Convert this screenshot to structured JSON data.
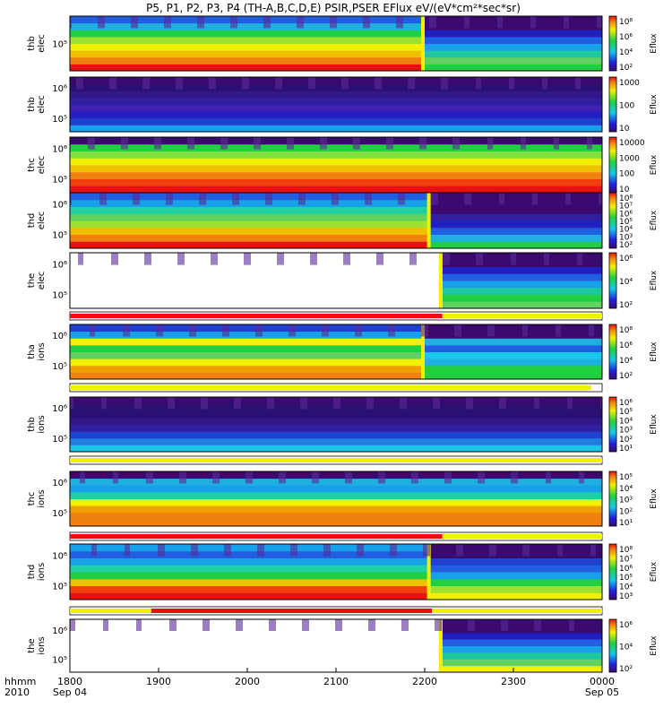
{
  "chart_data": {
    "type": "heatmap",
    "title": "P5, P1, P2, P3, P4 (TH-A,B,C,D,E) PSIR,PSER EFlux eV/(eV*cm²*sec*sr)",
    "x_axis": {
      "prefix_label": "hhmm",
      "prefix_sublabel": "2010",
      "range_hhmm": [
        "1800",
        "0000"
      ],
      "ticks": [
        {
          "label": "1800",
          "sub": "Sep 04"
        },
        {
          "label": "1900",
          "sub": ""
        },
        {
          "label": "2000",
          "sub": ""
        },
        {
          "label": "2100",
          "sub": ""
        },
        {
          "label": "2200",
          "sub": ""
        },
        {
          "label": "2300",
          "sub": ""
        },
        {
          "label": "0000",
          "sub": "Sep 05"
        }
      ]
    },
    "colorbar_label": "Eflux",
    "panels": [
      {
        "label1": "thb",
        "label2": "elec",
        "yticks": [
          "10⁵"
        ],
        "cbar": [
          "10⁸",
          "10⁶",
          "10⁴",
          "10²"
        ],
        "onset_hhmm": "2200"
      },
      {
        "label1": "thb",
        "label2": "elec",
        "yticks": [
          "10⁶",
          "10⁵"
        ],
        "cbar": [
          "1000",
          "100",
          "10"
        ]
      },
      {
        "label1": "thc",
        "label2": "elec",
        "yticks": [
          "10⁶",
          "10⁵"
        ],
        "cbar": [
          "10000",
          "1000",
          "100",
          "10"
        ]
      },
      {
        "label1": "thd",
        "label2": "elec",
        "yticks": [
          "10⁶",
          "10⁵"
        ],
        "cbar": [
          "10⁸",
          "10⁷",
          "10⁶",
          "10⁵",
          "10⁴",
          "10³",
          "10²"
        ],
        "onset_hhmm": "2204"
      },
      {
        "label1": "the",
        "label2": "elec",
        "yticks": [
          "10⁶",
          "10⁵"
        ],
        "cbar": [
          "10⁶",
          "10⁴",
          "10²"
        ],
        "onset_hhmm": "2212"
      },
      {
        "label1": "tha",
        "label2": "ions",
        "yticks": [
          "10⁶",
          "10⁵"
        ],
        "cbar": [
          "10⁸",
          "10⁶",
          "10⁴",
          "10²"
        ],
        "onset_hhmm": "2200"
      },
      {
        "label1": "thb",
        "label2": "ions",
        "yticks": [
          "10⁶",
          "10⁵"
        ],
        "cbar": [
          "10⁶",
          "10⁵",
          "10⁴",
          "10³",
          "10²",
          "10¹"
        ]
      },
      {
        "label1": "thc",
        "label2": "ions",
        "yticks": [
          "10⁶",
          "10⁵"
        ],
        "cbar": [
          "10⁵",
          "10⁴",
          "10³",
          "10²",
          "10¹"
        ]
      },
      {
        "label1": "thd",
        "label2": "ions",
        "yticks": [
          "10⁶",
          "10⁵"
        ],
        "cbar": [
          "10⁸",
          "10⁷",
          "10⁶",
          "10⁵",
          "10⁴",
          "10³"
        ],
        "onset_hhmm": "2204"
      },
      {
        "label1": "the",
        "label2": "ions",
        "yticks": [
          "10⁶",
          "10⁵"
        ],
        "cbar": [
          "10⁶",
          "10⁴",
          "10²"
        ],
        "onset_hhmm": "2212"
      }
    ]
  }
}
